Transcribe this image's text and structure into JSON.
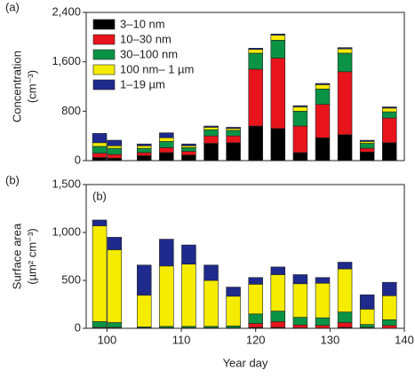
{
  "chart_data": [
    {
      "type": "bar",
      "stacked": true,
      "panel_label": "(a)",
      "ylabel": [
        "Concentration",
        "(cm⁻³)"
      ],
      "x": [
        99,
        101,
        105,
        108,
        111,
        114,
        117,
        120,
        123,
        126,
        129,
        132,
        135,
        138
      ],
      "xlim": [
        97.2,
        140
      ],
      "ylim": [
        0,
        2400
      ],
      "yticks": [
        0,
        800,
        {
          "value": 1600,
          "label": "1,600"
        },
        {
          "value": 2400,
          "label": "2,400"
        }
      ],
      "legend": "upper left",
      "series": [
        {
          "name": "3–10 nm",
          "color": "#000000",
          "values": [
            50,
            40,
            80,
            130,
            90,
            280,
            290,
            560,
            520,
            130,
            370,
            420,
            140,
            290
          ]
        },
        {
          "name": "10–30 nm",
          "color": "#e8141b",
          "values": [
            70,
            60,
            50,
            80,
            60,
            120,
            110,
            920,
            1140,
            430,
            540,
            1020,
            60,
            400
          ]
        },
        {
          "name": "30–100 nm",
          "color": "#0a9345",
          "values": [
            110,
            100,
            70,
            100,
            60,
            100,
            90,
            260,
            290,
            240,
            250,
            300,
            80,
            100
          ]
        },
        {
          "name": "100 nm– 1 µm",
          "color": "#f5ec00",
          "values": [
            60,
            40,
            40,
            60,
            30,
            40,
            30,
            60,
            80,
            70,
            70,
            70,
            30,
            60
          ]
        },
        {
          "name": "1–19 µm",
          "color": "#1e2a8c",
          "values": [
            150,
            90,
            30,
            80,
            30,
            20,
            20,
            20,
            20,
            20,
            20,
            20,
            20,
            20
          ]
        }
      ]
    },
    {
      "type": "bar",
      "stacked": true,
      "panel_label": "(b)",
      "inner_label": "(b)",
      "ylabel": [
        "Surface area",
        "(µm² cm⁻³)"
      ],
      "xlabel": "Year day",
      "x": [
        99,
        101,
        105,
        108,
        111,
        114,
        117,
        120,
        123,
        126,
        129,
        132,
        135,
        138
      ],
      "xlim": [
        97.2,
        140
      ],
      "xticks": [
        100,
        110,
        120,
        130,
        140
      ],
      "ylim": [
        0,
        1500
      ],
      "yticks": [
        0,
        500,
        {
          "value": 1000,
          "label": "1,000"
        },
        {
          "value": 1500,
          "label": "1,500"
        }
      ],
      "series": [
        {
          "color": "#000000",
          "values": [
            0,
            0,
            0,
            0,
            0,
            0,
            0,
            10,
            10,
            5,
            0,
            10,
            0,
            0
          ]
        },
        {
          "color": "#e8141b",
          "values": [
            10,
            10,
            5,
            5,
            5,
            5,
            5,
            40,
            60,
            30,
            30,
            50,
            10,
            30
          ]
        },
        {
          "color": "#0a9345",
          "values": [
            60,
            50,
            10,
            15,
            15,
            15,
            20,
            100,
            110,
            80,
            80,
            110,
            30,
            60
          ]
        },
        {
          "color": "#f5ec00",
          "values": [
            1000,
            760,
            330,
            630,
            650,
            480,
            310,
            310,
            380,
            350,
            360,
            450,
            160,
            250
          ]
        },
        {
          "color": "#1e2a8c",
          "values": [
            60,
            130,
            315,
            280,
            200,
            160,
            95,
            70,
            80,
            95,
            60,
            70,
            150,
            140
          ]
        }
      ]
    }
  ]
}
